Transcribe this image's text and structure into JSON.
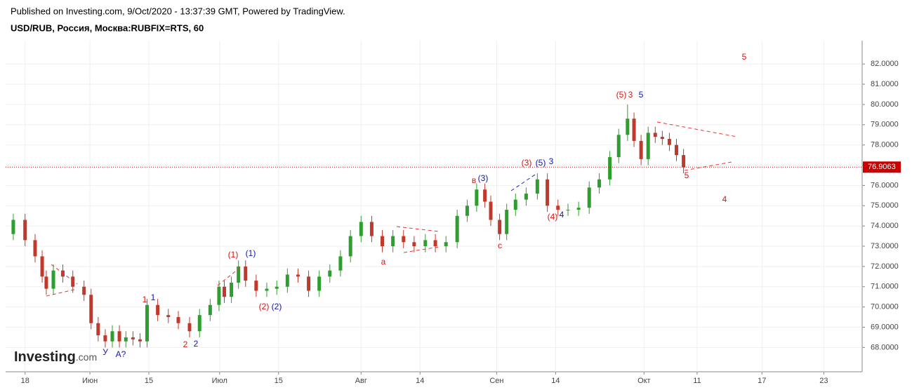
{
  "header": {
    "published": "Published on Investing.com, 9/Oct/2020 - 13:37:39 GMT, Powered by TradingView.",
    "logo": "Investing",
    "logo_suffix": ".com"
  },
  "chart_data": {
    "type": "candlestick",
    "title": "USD/RUB, Россия, Москва:RUBFIX=RTS, 60",
    "x": [
      -2,
      0,
      1.7,
      2.9,
      3.6,
      4.8,
      6.4,
      8.1,
      10,
      11.2,
      12.4,
      13.6,
      14.8,
      16,
      17.1,
      18.3,
      19.5,
      20.7,
      22.5,
      24.3,
      26,
      27.9,
      29.6,
      31.4,
      32.9,
      33.8,
      35,
      36.2,
      37.4,
      39.2,
      41,
      42.7,
      44.5,
      46.3,
      48.1,
      49.9,
      51.7,
      53.5,
      55.2,
      57,
      58.8,
      60.6,
      62.4,
      64.2,
      66,
      67.9,
      69.6,
      71.4,
      73.3,
      75,
      76.6,
      78,
      79,
      80.5,
      81.7,
      83.2,
      85,
      86.9,
      88.6,
      90.4,
      92.1,
      93.9,
      95.7,
      97.4,
      99.2,
      100.7,
      102.2,
      103.3,
      104.5,
      105.7,
      106.9,
      108.1,
      109.3,
      110.5,
      111.7
    ],
    "open": [
      73.6,
      74.3,
      73.3,
      72.5,
      71.5,
      70.9,
      71.8,
      71.5,
      71.0,
      70.6,
      69.2,
      68.6,
      68.3,
      68.8,
      68.3,
      68.5,
      68.4,
      68.3,
      70.1,
      69.6,
      69.5,
      69.2,
      68.8,
      69.6,
      70.1,
      71.0,
      70.5,
      71.2,
      72.0,
      71.3,
      70.8,
      70.9,
      71.0,
      71.6,
      71.5,
      70.8,
      71.5,
      71.8,
      72.5,
      73.5,
      74.2,
      73.5,
      73.0,
      73.5,
      73.2,
      73.0,
      73.3,
      73.0,
      73.2,
      74.5,
      75.0,
      75.8,
      75.2,
      74.3,
      73.6,
      74.8,
      75.3,
      75.6,
      76.3,
      75.0,
      74.8,
      74.8,
      74.9,
      75.9,
      76.3,
      77.4,
      78.5,
      79.3,
      78.2,
      77.3,
      78.6,
      78.4,
      78.3,
      78.0,
      77.5
    ],
    "high": [
      74.6,
      74.6,
      73.6,
      72.8,
      71.8,
      72.1,
      72.1,
      71.8,
      71.3,
      70.9,
      69.5,
      68.9,
      69.1,
      69.1,
      68.8,
      68.8,
      68.7,
      70.4,
      70.4,
      69.9,
      69.8,
      69.5,
      69.9,
      70.4,
      71.3,
      71.3,
      71.5,
      72.3,
      72.3,
      71.6,
      71.2,
      71.3,
      71.9,
      71.9,
      71.8,
      71.8,
      72.1,
      72.8,
      73.8,
      74.5,
      74.5,
      73.8,
      73.8,
      73.8,
      73.5,
      73.6,
      73.6,
      73.5,
      74.8,
      75.3,
      76.1,
      76.1,
      75.5,
      74.6,
      75.1,
      75.6,
      75.9,
      76.6,
      76.6,
      75.3,
      75.1,
      75.2,
      76.2,
      76.6,
      77.7,
      78.8,
      80.0,
      79.6,
      78.5,
      78.9,
      78.9,
      78.7,
      78.6,
      78.3,
      77.8
    ],
    "low": [
      73.3,
      73.0,
      72.2,
      71.2,
      70.6,
      70.6,
      71.2,
      70.7,
      70.3,
      68.9,
      68.3,
      68.0,
      68.0,
      68.0,
      68.0,
      68.1,
      68.0,
      68.0,
      69.3,
      69.2,
      68.9,
      68.5,
      68.5,
      69.3,
      69.8,
      70.2,
      70.2,
      70.9,
      71.0,
      70.5,
      70.5,
      70.6,
      70.7,
      71.2,
      70.5,
      70.5,
      71.2,
      71.5,
      72.2,
      73.2,
      73.2,
      72.7,
      72.7,
      72.9,
      72.7,
      72.7,
      72.7,
      72.7,
      72.9,
      74.2,
      74.7,
      74.9,
      74.0,
      73.3,
      73.3,
      74.5,
      75.0,
      75.3,
      74.7,
      74.5,
      74.5,
      74.5,
      74.6,
      75.6,
      76.0,
      77.1,
      78.2,
      77.9,
      77.0,
      77.0,
      78.1,
      78.0,
      77.7,
      77.2,
      76.6
    ],
    "close": [
      74.3,
      73.3,
      72.5,
      71.5,
      70.9,
      71.8,
      71.5,
      71.0,
      70.6,
      69.2,
      68.6,
      68.3,
      68.8,
      68.3,
      68.5,
      68.4,
      68.3,
      70.1,
      69.6,
      69.5,
      69.2,
      68.8,
      69.6,
      70.1,
      71.0,
      70.5,
      71.2,
      72.0,
      71.3,
      70.8,
      70.9,
      71.0,
      71.6,
      71.5,
      70.8,
      71.5,
      71.8,
      72.5,
      73.5,
      74.2,
      73.5,
      73.0,
      73.5,
      73.2,
      73.0,
      73.3,
      73.0,
      73.2,
      74.5,
      75.0,
      75.8,
      75.2,
      74.3,
      73.6,
      74.8,
      75.3,
      75.6,
      76.3,
      75.0,
      74.8,
      74.8,
      74.9,
      75.9,
      76.3,
      77.4,
      78.5,
      79.3,
      78.2,
      77.3,
      78.6,
      78.4,
      78.3,
      78.0,
      77.5,
      76.9
    ],
    "up_color": "#2e9e2e",
    "down_color": "#c0392b",
    "last_price": 76.9063,
    "last_price_color": "#cc0000",
    "xlim": [
      -3.3,
      142
    ],
    "ylim": [
      66.8,
      83.15
    ],
    "xticks": [
      {
        "value": 0,
        "label": "18"
      },
      {
        "value": 11,
        "label": "Июн"
      },
      {
        "value": 21,
        "label": "15"
      },
      {
        "value": 33,
        "label": "Июл"
      },
      {
        "value": 43,
        "label": "15"
      },
      {
        "value": 57,
        "label": "Авг"
      },
      {
        "value": 67,
        "label": "14"
      },
      {
        "value": 80,
        "label": "Сен"
      },
      {
        "value": 90,
        "label": "14"
      },
      {
        "value": 105,
        "label": "Окт"
      },
      {
        "value": 114,
        "label": "11"
      },
      {
        "value": 125,
        "label": "17"
      },
      {
        "value": 135.5,
        "label": "23"
      }
    ],
    "yticks": [
      {
        "value": 68,
        "label": "68.0000"
      },
      {
        "value": 69,
        "label": "69.0000"
      },
      {
        "value": 70,
        "label": "70.0000"
      },
      {
        "value": 71,
        "label": "71.0000"
      },
      {
        "value": 72,
        "label": "72.0000"
      },
      {
        "value": 73,
        "label": "73.0000"
      },
      {
        "value": 74,
        "label": "74.0000"
      },
      {
        "value": 75,
        "label": "75.0000"
      },
      {
        "value": 76,
        "label": "76.0000"
      },
      {
        "value": 77,
        "label": "77.0000"
      },
      {
        "value": 78,
        "label": "78.0000"
      },
      {
        "value": 79,
        "label": "79.0000"
      },
      {
        "value": 80,
        "label": "80.0000"
      },
      {
        "value": 81,
        "label": "81.0000"
      },
      {
        "value": 82,
        "label": "82.0000"
      }
    ],
    "grid": true,
    "annotations": [
      {
        "text": "5",
        "color": "#dd1111"
      },
      {
        "text": "(5)",
        "color": "#dd1111"
      },
      {
        "text": "3",
        "color": "#dd1111"
      },
      {
        "text": "5",
        "color": "#1111bb"
      },
      {
        "text": "5",
        "color": "#dd1111"
      },
      {
        "text": "4",
        "color": "#dd1111"
      },
      {
        "text": "(3)",
        "color": "#dd1111"
      },
      {
        "text": "(5)",
        "color": "#1111bb"
      },
      {
        "text": "3",
        "color": "#1111bb"
      },
      {
        "text": "в",
        "color": "#dd1111"
      },
      {
        "text": "(3)",
        "color": "#1111bb"
      },
      {
        "text": "(4)",
        "color": "#dd1111"
      },
      {
        "text": "4",
        "color": "#1111bb"
      },
      {
        "text": "с",
        "color": "#dd1111"
      },
      {
        "text": "а",
        "color": "#dd1111"
      },
      {
        "text": "(1)",
        "color": "#dd1111"
      },
      {
        "text": "(1)",
        "color": "#1111bb"
      },
      {
        "text": "(2)",
        "color": "#dd1111"
      },
      {
        "text": "(2)",
        "color": "#1111bb"
      },
      {
        "text": "1",
        "color": "#dd1111"
      },
      {
        "text": "1",
        "color": "#1111bb"
      },
      {
        "text": "2",
        "color": "#dd1111"
      },
      {
        "text": "2",
        "color": "#1111bb"
      },
      {
        "text": "У",
        "color": "#1111bb"
      },
      {
        "text": "А?",
        "color": "#1111bb"
      }
    ]
  }
}
